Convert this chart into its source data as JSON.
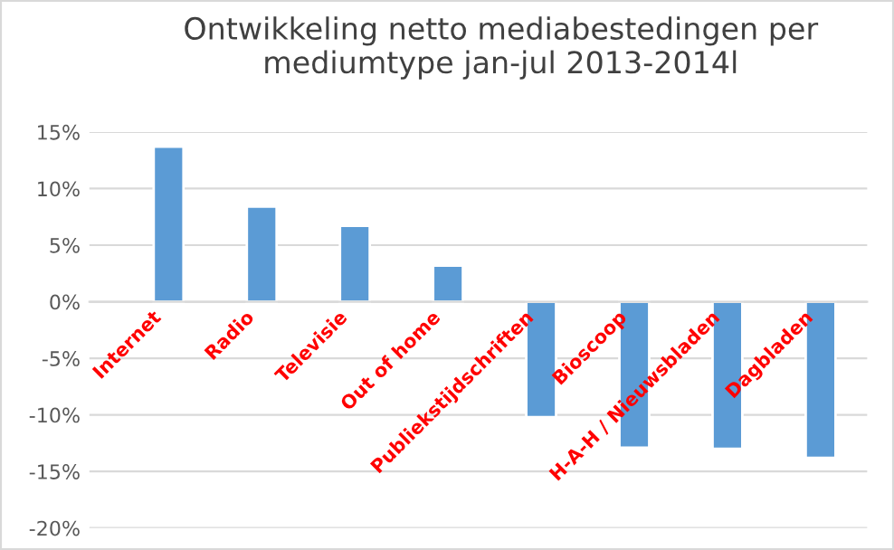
{
  "chart_data": {
    "type": "bar",
    "title": "Ontwikkeling netto mediabestedingen per\nmediumtype jan-jul 2013-2014l",
    "categories": [
      "Internet",
      "Radio",
      "Televisie",
      "Out of home",
      "Publiekstijdschriften",
      "Bioscoop",
      "H-A-H / Nieuwsbladen",
      "Dagbladen"
    ],
    "values": [
      13.7,
      8.4,
      6.7,
      3.2,
      -10.2,
      -12.9,
      -13.0,
      -13.8
    ],
    "color": "#5b9bd5",
    "ylim": [
      -20,
      15
    ],
    "yticks": [
      {
        "value": -20,
        "label": "-20%"
      },
      {
        "value": -15,
        "label": "-15%"
      },
      {
        "value": -10,
        "label": "-10%"
      },
      {
        "value": -5,
        "label": "-5%"
      },
      {
        "value": 0,
        "label": "0%"
      },
      {
        "value": 5,
        "label": "5%"
      },
      {
        "value": 10,
        "label": "10%"
      },
      {
        "value": 15,
        "label": "15%"
      }
    ],
    "grid": "y"
  }
}
